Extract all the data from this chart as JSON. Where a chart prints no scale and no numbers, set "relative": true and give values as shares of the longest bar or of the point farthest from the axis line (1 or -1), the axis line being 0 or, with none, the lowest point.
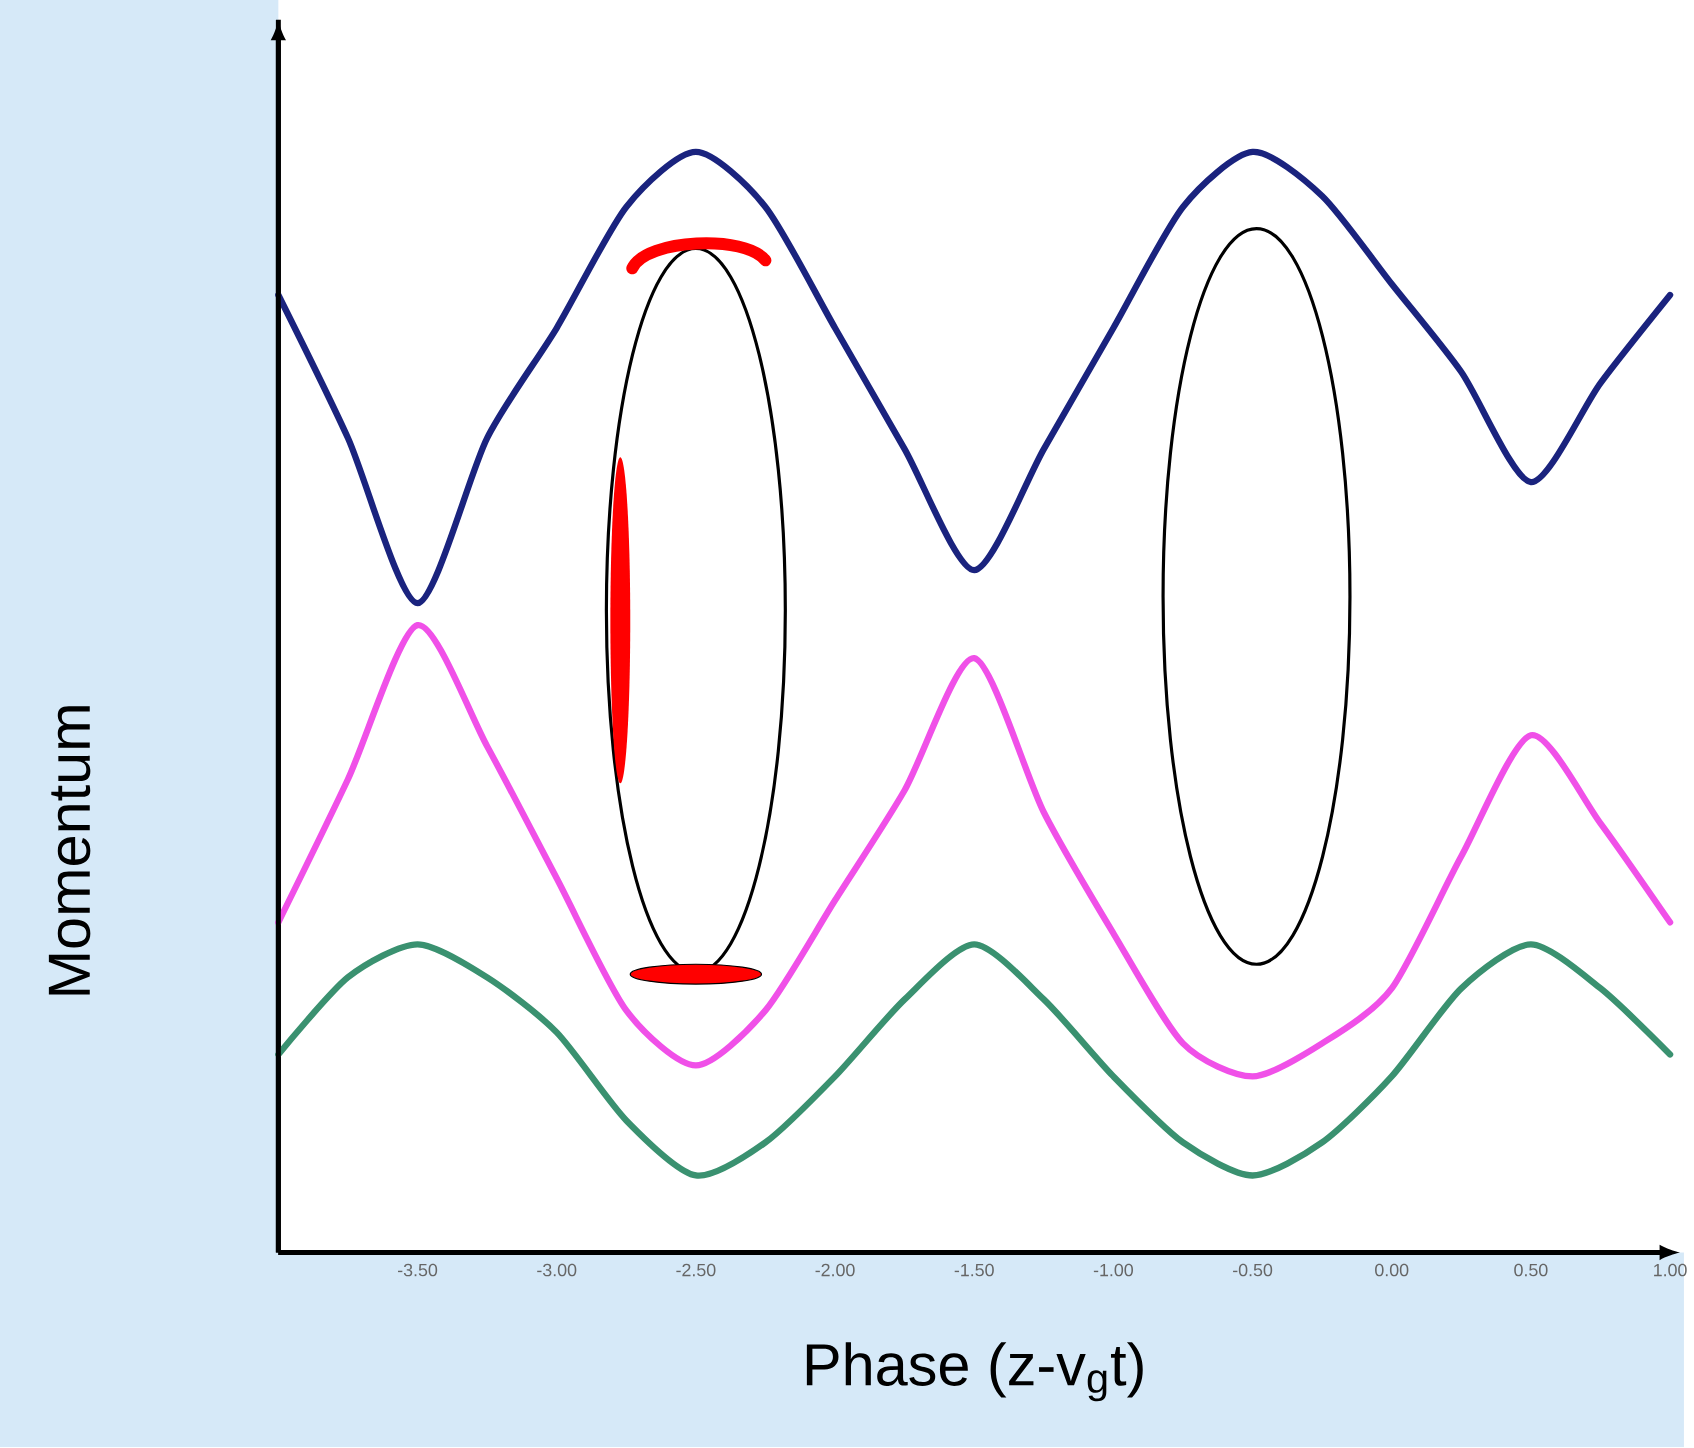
{
  "chart_data": {
    "type": "line",
    "relative": true,
    "xlabel": "Phase (z-v$_{g}$t)",
    "ylabel": "Momentum",
    "xlim": [
      -4,
      1
    ],
    "xticks": [
      {
        "value": -3.5,
        "label": "-3.50"
      },
      {
        "value": -3.0,
        "label": "-3.00"
      },
      {
        "value": -2.5,
        "label": "-2.50"
      },
      {
        "value": -2.0,
        "label": "-2.00"
      },
      {
        "value": -1.5,
        "label": "-1.50"
      },
      {
        "value": -1.0,
        "label": "-1.00"
      },
      {
        "value": -0.5,
        "label": "-0.50"
      },
      {
        "value": 0.0,
        "label": "0.00"
      },
      {
        "value": 0.5,
        "label": "0.50"
      },
      {
        "value": 1.0,
        "label": "1.00"
      }
    ],
    "x": [
      -4.0,
      -3.75,
      -3.5,
      -3.25,
      -3.0,
      -2.75,
      -2.5,
      -2.25,
      -2.0,
      -1.75,
      -1.5,
      -1.25,
      -1.0,
      -0.75,
      -0.5,
      -0.25,
      0.0,
      0.25,
      0.5,
      0.75,
      1.0
    ],
    "marker": "none",
    "line_style": "solid",
    "series": [
      {
        "color": "#1a237e",
        "values": [
          0.87,
          0.74,
          0.59,
          0.74,
          0.84,
          0.95,
          1.0,
          0.95,
          0.84,
          0.73,
          0.62,
          0.73,
          0.84,
          0.95,
          1.0,
          0.96,
          0.88,
          0.8,
          0.7,
          0.79,
          0.87
        ]
      },
      {
        "color": "#f050e8",
        "values": [
          0.3,
          0.43,
          0.57,
          0.46,
          0.34,
          0.22,
          0.17,
          0.22,
          0.32,
          0.42,
          0.54,
          0.4,
          0.29,
          0.19,
          0.16,
          0.19,
          0.24,
          0.36,
          0.47,
          0.39,
          0.3
        ]
      },
      {
        "color": "#3a9170",
        "values": [
          0.18,
          0.25,
          0.28,
          0.25,
          0.2,
          0.12,
          0.07,
          0.1,
          0.16,
          0.23,
          0.28,
          0.23,
          0.16,
          0.1,
          0.07,
          0.1,
          0.16,
          0.24,
          0.28,
          0.24,
          0.18
        ]
      }
    ]
  }
}
